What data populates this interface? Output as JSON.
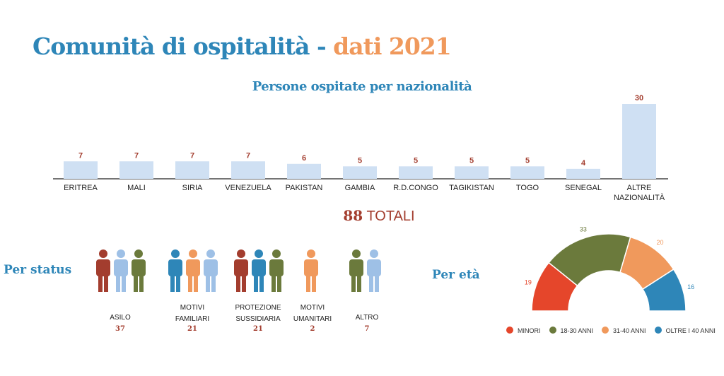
{
  "title": {
    "main": "Comunità di ospitalità -",
    "highlight": "dati 2021"
  },
  "colors": {
    "blue": "#2e86b8",
    "orange": "#f0995c",
    "red": "#a33d2e",
    "bar": "#cfe0f3"
  },
  "totals": {
    "value": "88",
    "label": "TOTALI"
  },
  "status_label": "Per status",
  "age_label": "Per età",
  "chart_data": [
    {
      "type": "bar",
      "title": "Persone ospitate per nazionalità",
      "categories": [
        "ERITREA",
        "MALI",
        "SIRIA",
        "VENEZUELA",
        "PAKISTAN",
        "GAMBIA",
        "R.D.CONGO",
        "TAGIKISTAN",
        "TOGO",
        "SENEGAL",
        "ALTRE NAZIONALITÀ"
      ],
      "values": [
        7,
        7,
        7,
        7,
        6,
        5,
        5,
        5,
        5,
        4,
        30
      ],
      "ylim": [
        0,
        30
      ],
      "grid": false
    },
    {
      "type": "table",
      "categories": [
        "ASILO",
        "MOTIVI FAMILIARI",
        "PROTEZIONE SUSSIDIARIA",
        "MOTIVI UMANITARI",
        "ALTRO"
      ],
      "values": [
        37,
        21,
        21,
        2,
        7
      ],
      "icon": "person-icon"
    },
    {
      "type": "pie",
      "categories": [
        "MINORI",
        "18-30 ANNI",
        "31-40 ANNI",
        "OLTRE I 40 ANNI"
      ],
      "values": [
        19,
        33,
        20,
        16
      ],
      "colors": [
        "#e5462b",
        "#6b7a3c",
        "#f0995c",
        "#2e86b8"
      ],
      "legend": "bottom"
    }
  ],
  "status_icons": [
    [
      "#a33d2e",
      "#9ec0e6",
      "#6b7a3c"
    ],
    [
      "#2e86b8",
      "#f0995c",
      "#9ec0e6"
    ],
    [
      "#a33d2e",
      "#2e86b8",
      "#6b7a3c"
    ],
    [
      "#f0995c"
    ],
    [
      "#6b7a3c",
      "#9ec0e6"
    ]
  ]
}
